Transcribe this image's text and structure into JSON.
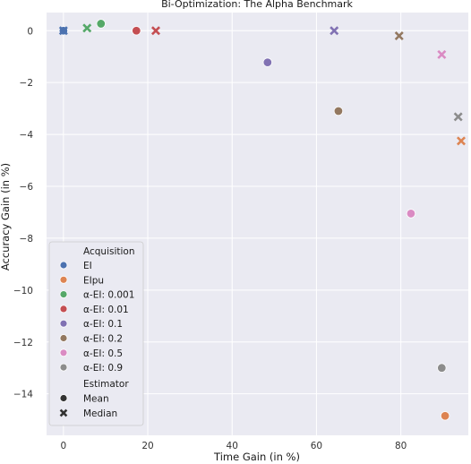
{
  "chart_data": {
    "type": "scatter",
    "title": "Bi-Optimization: The Alpha Benchmark",
    "xlabel": "Time Gain (in %)",
    "ylabel": "Accuracy Gain (in %)",
    "xlim": [
      -4,
      96
    ],
    "ylim": [
      -15.6,
      0.7
    ],
    "xticks": [
      "0",
      "20",
      "40",
      "60",
      "80"
    ],
    "xtick_values": [
      0,
      20,
      40,
      60,
      80
    ],
    "yticks": [
      "0",
      "−2",
      "−4",
      "−6",
      "−8",
      "−10",
      "−12",
      "−14"
    ],
    "ytick_values": [
      0,
      -2,
      -4,
      -6,
      -8,
      -10,
      -12,
      -14
    ],
    "grid": true,
    "background": "#eaeaf2",
    "legend_position": "lower-left",
    "legend_hue_title": "Acquisition",
    "legend_style_title": "Estimator",
    "estimators": [
      {
        "name": "Mean",
        "marker": "circle"
      },
      {
        "name": "Median",
        "marker": "x"
      }
    ],
    "series": [
      {
        "name": "EI",
        "color": "#4c72b0",
        "points": [
          {
            "x": 0,
            "y": 0,
            "estimator": "Mean"
          },
          {
            "x": 0,
            "y": 0,
            "estimator": "Median"
          }
        ]
      },
      {
        "name": "EIpu",
        "color": "#dd8452",
        "points": [
          {
            "x": 90.5,
            "y": -14.85,
            "estimator": "Mean"
          },
          {
            "x": 94.3,
            "y": -4.25,
            "estimator": "Median"
          }
        ]
      },
      {
        "name": "α-EI: 0.001",
        "color": "#55a868",
        "points": [
          {
            "x": 8.9,
            "y": 0.27,
            "estimator": "Mean"
          },
          {
            "x": 5.6,
            "y": 0.1,
            "estimator": "Median"
          }
        ]
      },
      {
        "name": "α-EI: 0.01",
        "color": "#c44e52",
        "points": [
          {
            "x": 17.3,
            "y": 0,
            "estimator": "Mean"
          },
          {
            "x": 21.9,
            "y": 0,
            "estimator": "Median"
          }
        ]
      },
      {
        "name": "α-EI: 0.1",
        "color": "#8172b3",
        "points": [
          {
            "x": 48.4,
            "y": -1.22,
            "estimator": "Mean"
          },
          {
            "x": 64.2,
            "y": 0,
            "estimator": "Median"
          }
        ]
      },
      {
        "name": "α-EI: 0.2",
        "color": "#937860",
        "points": [
          {
            "x": 65.2,
            "y": -3.1,
            "estimator": "Mean"
          },
          {
            "x": 79.6,
            "y": -0.2,
            "estimator": "Median"
          }
        ]
      },
      {
        "name": "α-EI: 0.5",
        "color": "#da8bc3",
        "points": [
          {
            "x": 82.4,
            "y": -7.05,
            "estimator": "Mean"
          },
          {
            "x": 89.7,
            "y": -0.92,
            "estimator": "Median"
          }
        ]
      },
      {
        "name": "α-EI: 0.9",
        "color": "#8c8c8c",
        "points": [
          {
            "x": 89.7,
            "y": -13.0,
            "estimator": "Mean"
          },
          {
            "x": 93.6,
            "y": -3.32,
            "estimator": "Median"
          }
        ]
      }
    ]
  }
}
